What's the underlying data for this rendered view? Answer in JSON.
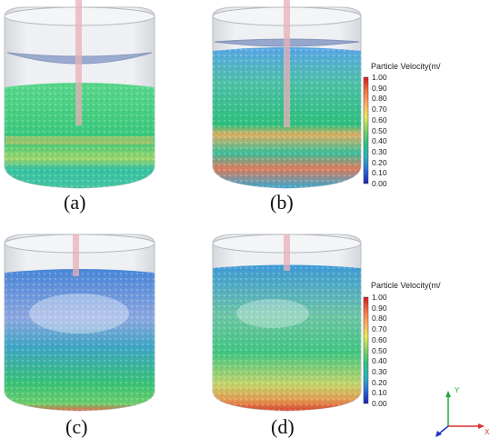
{
  "panels": [
    {
      "id": "a",
      "label": "(a)"
    },
    {
      "id": "b",
      "label": "(b)"
    },
    {
      "id": "c",
      "label": "(c)"
    },
    {
      "id": "d",
      "label": "(d)"
    }
  ],
  "colorbar": {
    "title": "Particle Velocity(m/",
    "ticks": [
      "1.00",
      "0.90",
      "0.80",
      "0.70",
      "0.60",
      "0.50",
      "0.40",
      "0.30",
      "0.20",
      "0.10",
      "0.00"
    ],
    "colors": [
      "#d7191c",
      "#f46d43",
      "#fdae61",
      "#f2e85a",
      "#a6d96a",
      "#37c86a",
      "#2cb6a0",
      "#2b9ed8",
      "#2b5fd8",
      "#1d2bb8"
    ]
  },
  "axes": {
    "y_label": "Y",
    "x_label": "X",
    "y_color": "#1faa3a",
    "x_color": "#d83333",
    "z_color": "#2233cc"
  }
}
